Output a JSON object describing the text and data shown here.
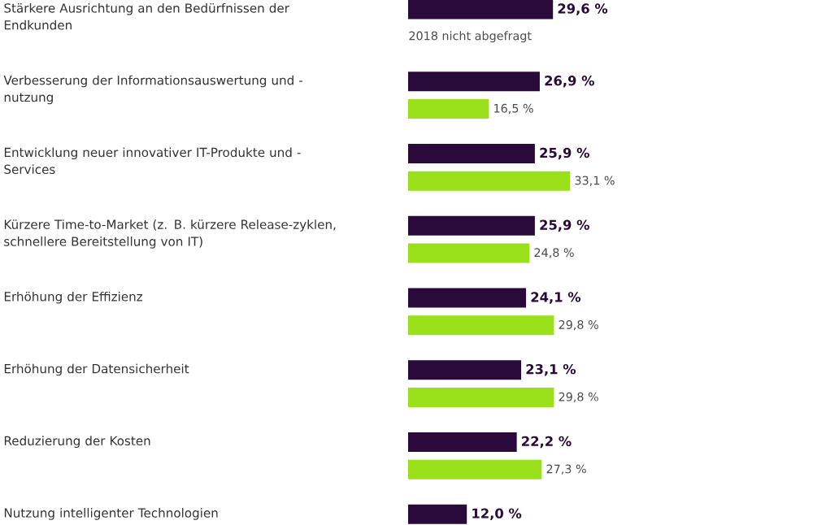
{
  "chart_data": {
    "type": "bar",
    "orientation": "horizontal",
    "categories": [
      "Stärkere Ausrichtung an den Bedürfnissen der Endkunden",
      "Verbesserung der Informationsauswertung und -nutzung",
      "Entwicklung neuer innovativer IT-Produkte und -Services",
      "Kürzere Time-to-Market (z. B. kürzere Release-zyklen, schnellere Bereitstellung von IT)",
      "Erhöhung der Effizienz",
      "Erhöhung der Datensicherheit",
      "Reduzierung der Kosten",
      "Nutzung intelligenter Technologien"
    ],
    "series": [
      {
        "color": "#2a0a3a",
        "values": [
          29.6,
          26.9,
          25.9,
          25.9,
          24.1,
          23.1,
          22.2,
          12.0
        ],
        "value_labels": [
          "29,6 %",
          "26,9 %",
          "25,9 %",
          "25,9 %",
          "24,1 %",
          "23,1 %",
          "22,2 %",
          "12,0 %"
        ]
      },
      {
        "color": "#99e01a",
        "values": [
          null,
          16.5,
          33.1,
          24.8,
          29.8,
          29.8,
          27.3,
          null
        ],
        "value_labels": [
          null,
          "16,5 %",
          "33,1 %",
          "24,8 %",
          "29,8 %",
          "29,8 %",
          "27,3 %",
          null
        ]
      }
    ],
    "annotations": [
      "2018 nicht abgefragt"
    ]
  }
}
